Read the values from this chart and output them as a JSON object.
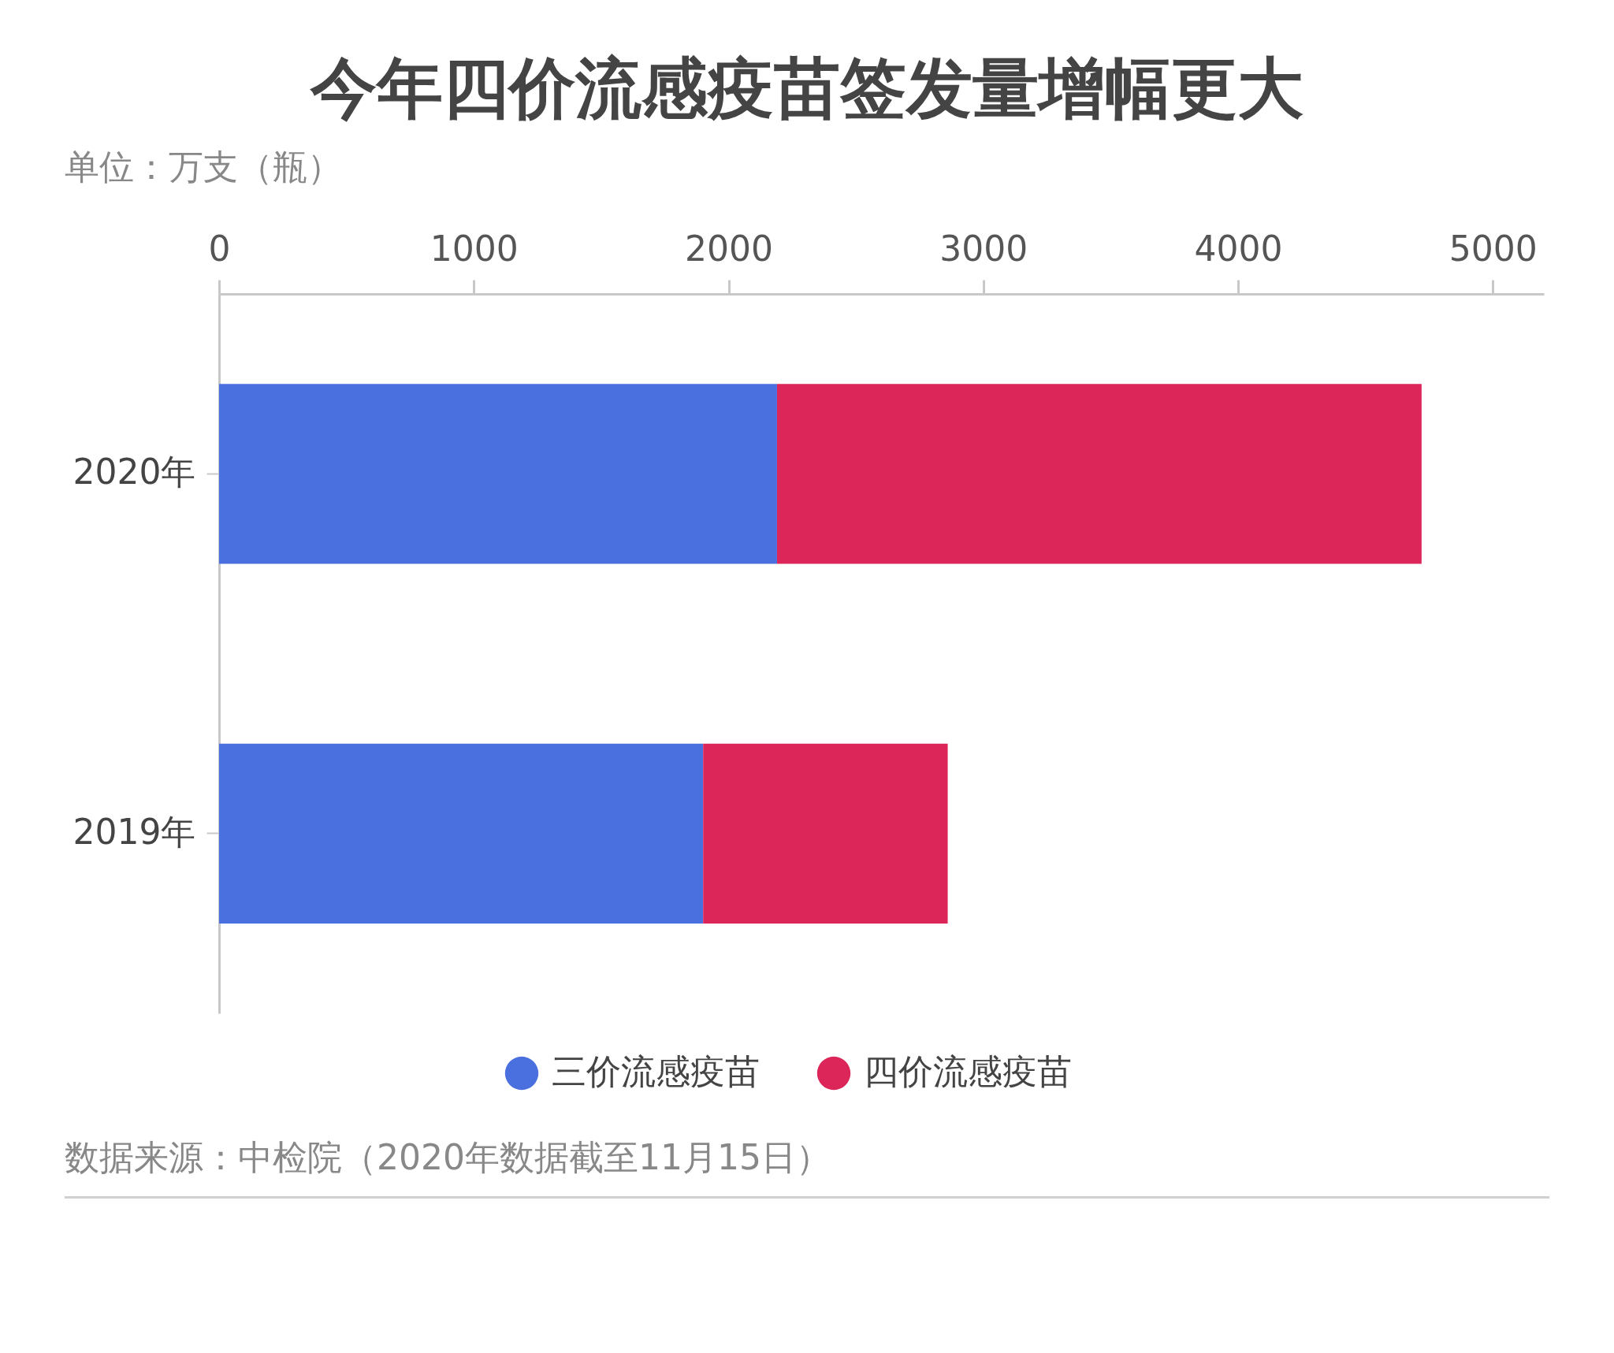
{
  "chart_data": {
    "type": "bar",
    "orientation": "horizontal",
    "stacked": true,
    "title": "今年四价流感疫苗签发量增幅更大",
    "subtitle": "单位：万支（瓶）",
    "categories": [
      "2020年",
      "2019年"
    ],
    "series": [
      {
        "name": "三价流感疫苗",
        "color": "#4a70e0",
        "values": [
          2190,
          1900
        ]
      },
      {
        "name": "四价流感疫苗",
        "color": "#dc265a",
        "values": [
          2530,
          960
        ]
      }
    ],
    "xlim": [
      0,
      5200
    ],
    "xticks": [
      0,
      1000,
      2000,
      3000,
      4000,
      5000
    ],
    "legend": "bottom",
    "annotations": [
      "数据来源：中检院（2020年数据截至11月15日）"
    ]
  }
}
